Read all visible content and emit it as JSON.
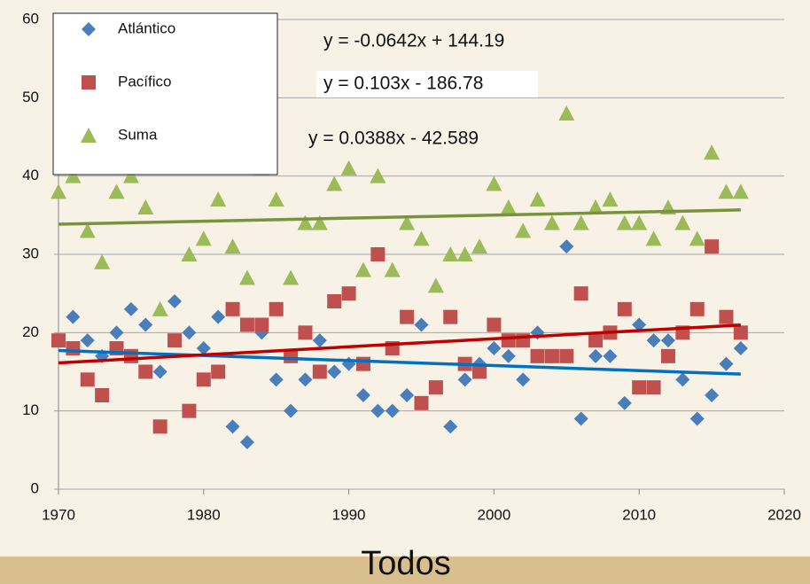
{
  "chart_data": {
    "type": "scatter",
    "title": "Todos",
    "x": [
      1970,
      1971,
      1972,
      1973,
      1974,
      1975,
      1976,
      1977,
      1978,
      1979,
      1980,
      1981,
      1982,
      1983,
      1984,
      1985,
      1986,
      1987,
      1988,
      1989,
      1990,
      1991,
      1992,
      1993,
      1994,
      1995,
      1996,
      1997,
      1998,
      1999,
      2000,
      2001,
      2002,
      2003,
      2004,
      2005,
      2006,
      2007,
      2008,
      2009,
      2010,
      2011,
      2012,
      2013,
      2014,
      2015,
      2016,
      2017
    ],
    "series": [
      {
        "name": "Atlántico",
        "color": "#4a7ebb",
        "marker": "diamond",
        "values": [
          19,
          22,
          19,
          17,
          20,
          23,
          21,
          15,
          24,
          20,
          18,
          22,
          8,
          6,
          20,
          14,
          10,
          14,
          19,
          15,
          16,
          12,
          10,
          10,
          12,
          21,
          13,
          8,
          14,
          16,
          18,
          17,
          14,
          20,
          17,
          31,
          9,
          17,
          17,
          11,
          21,
          19,
          19,
          14,
          9,
          12,
          16,
          18
        ],
        "trendline": {
          "label": "y = -0.0642x + 144.19",
          "slope": -0.0642,
          "intercept": 144.19,
          "color": "#0070c0"
        }
      },
      {
        "name": "Pacífico",
        "color": "#c0504d",
        "marker": "square",
        "values": [
          19,
          18,
          14,
          12,
          18,
          17,
          15,
          8,
          19,
          10,
          14,
          15,
          23,
          21,
          21,
          23,
          17,
          20,
          15,
          24,
          25,
          16,
          30,
          18,
          22,
          11,
          13,
          22,
          16,
          15,
          21,
          19,
          19,
          17,
          17,
          17,
          25,
          19,
          20,
          23,
          13,
          13,
          17,
          20,
          23,
          31,
          22,
          20
        ],
        "trendline": {
          "label": "y = 0.103x - 186.78",
          "slope": 0.103,
          "intercept": -186.78,
          "color": "#c00000"
        }
      },
      {
        "name": "Suma",
        "color": "#9bbb59",
        "marker": "triangle",
        "values": [
          38,
          40,
          33,
          29,
          38,
          40,
          36,
          23,
          43,
          30,
          32,
          37,
          31,
          27,
          41,
          37,
          27,
          34,
          34,
          39,
          41,
          28,
          40,
          28,
          34,
          32,
          26,
          30,
          30,
          31,
          39,
          36,
          33,
          37,
          34,
          48,
          34,
          36,
          37,
          34,
          34,
          32,
          36,
          34,
          32,
          43,
          38,
          38
        ],
        "trendline": {
          "label": "y = 0.0388x - 42.589",
          "slope": 0.0388,
          "intercept": -42.589,
          "color": "#77933c"
        }
      }
    ],
    "xlim": [
      1970,
      2020
    ],
    "xticks": [
      1970,
      1980,
      1990,
      2000,
      2010,
      2020
    ],
    "ylim": [
      0,
      60
    ],
    "yticks": [
      0,
      10,
      20,
      30,
      40,
      50,
      60
    ],
    "grid": true,
    "legend": "top-left"
  }
}
